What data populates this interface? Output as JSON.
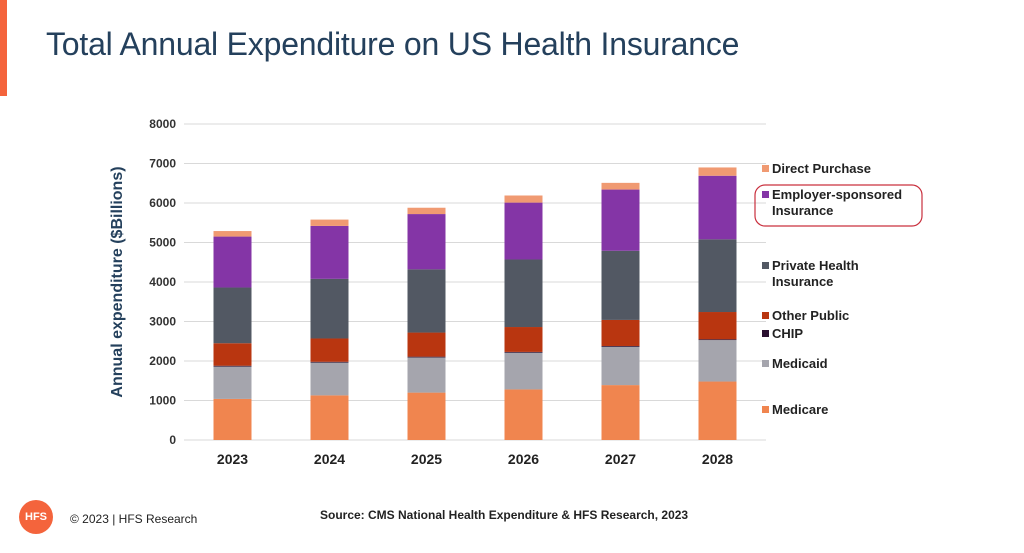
{
  "slide": {
    "title": "Total Annual Expenditure on US Health Insurance",
    "copyright": "© 2023 | HFS Research",
    "logo_text": "HFS",
    "source": "Source:  CMS National Health Expenditure & HFS Research, 2023",
    "accent_color": "#f4643c"
  },
  "chart_data": {
    "type": "bar",
    "stacked": true,
    "title": "",
    "xlabel": "",
    "ylabel": "Annual expenditure ($Billions)",
    "ylim": [
      0,
      8000
    ],
    "yticks": [
      0,
      1000,
      2000,
      3000,
      4000,
      5000,
      6000,
      7000,
      8000
    ],
    "grid": true,
    "legend_position": "right",
    "categories": [
      "2023",
      "2024",
      "2025",
      "2026",
      "2027",
      "2028"
    ],
    "series": [
      {
        "name": "Medicare",
        "color": "#f0854f",
        "values": [
          1040,
          1130,
          1200,
          1280,
          1390,
          1480
        ]
      },
      {
        "name": "Medicaid",
        "color": "#a5a5ad",
        "values": [
          820,
          830,
          890,
          930,
          970,
          1050
        ]
      },
      {
        "name": "CHIP",
        "color": "#2a0f2f",
        "values": [
          20,
          20,
          20,
          20,
          20,
          20
        ]
      },
      {
        "name": "Other Public",
        "color": "#b93610",
        "values": [
          570,
          590,
          610,
          630,
          660,
          690
        ]
      },
      {
        "name": "Private Health Insurance",
        "color": "#525863",
        "values": [
          1410,
          1510,
          1600,
          1710,
          1750,
          1840
        ]
      },
      {
        "name": "Employer-sponsored Insurance",
        "color": "#8435a6",
        "values": [
          1290,
          1340,
          1400,
          1440,
          1550,
          1610
        ]
      },
      {
        "name": "Direct Purchase",
        "color": "#f09a72",
        "values": [
          140,
          160,
          160,
          180,
          170,
          210
        ]
      }
    ],
    "legend": [
      {
        "series": "Direct Purchase",
        "lines": [
          "Direct Purchase"
        ]
      },
      {
        "series": "Employer-sponsored Insurance",
        "lines": [
          "Employer-sponsored",
          "Insurance"
        ],
        "highlighted": true,
        "highlight_color": "#c9303e"
      },
      {
        "series": "Private Health Insurance",
        "lines": [
          "Private Health",
          "Insurance"
        ]
      },
      {
        "series": "Other Public",
        "lines": [
          "Other Public"
        ]
      },
      {
        "series": "CHIP",
        "lines": [
          "CHIP"
        ]
      },
      {
        "series": "Medicaid",
        "lines": [
          "Medicaid"
        ]
      },
      {
        "series": "Medicare",
        "lines": [
          "Medicare"
        ]
      }
    ]
  }
}
